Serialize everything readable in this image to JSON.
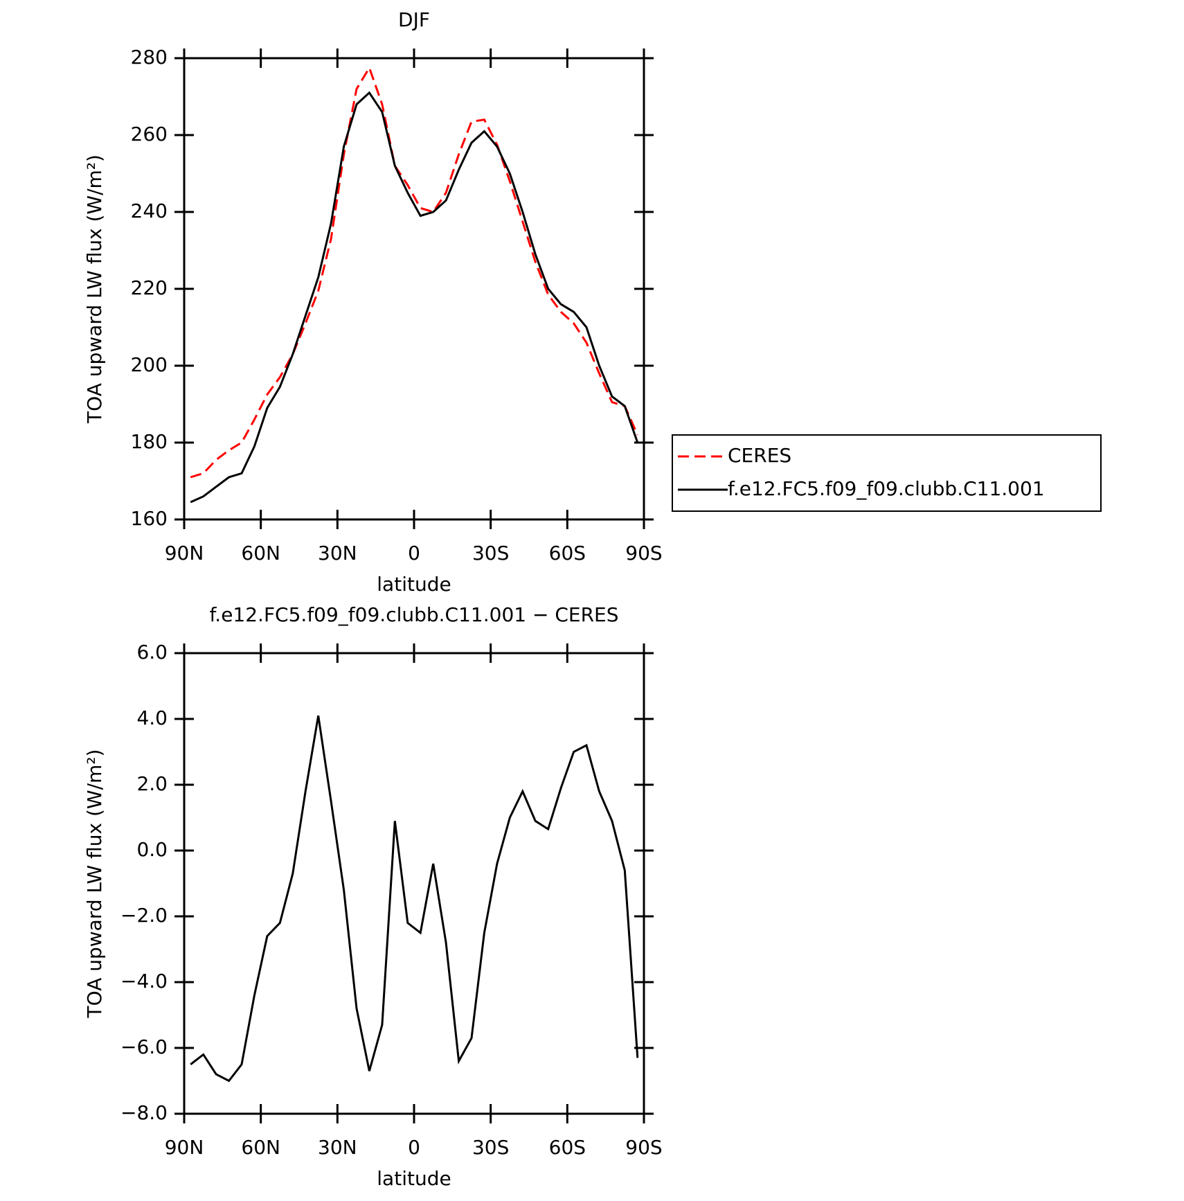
{
  "chart_data": [
    {
      "type": "line",
      "title": "DJF",
      "xlabel": "latitude",
      "ylabel": "TOA upward LW flux (W/m²)",
      "x": [
        87.5,
        82.5,
        77.5,
        72.5,
        67.5,
        62.5,
        57.5,
        52.5,
        47.5,
        42.5,
        37.5,
        32.5,
        27.5,
        22.5,
        17.5,
        12.5,
        7.5,
        2.5,
        -2.5,
        -7.5,
        -12.5,
        -17.5,
        -22.5,
        -27.5,
        -32.5,
        -37.5,
        -42.5,
        -47.5,
        -52.5,
        -57.5,
        -62.5,
        -67.5,
        -72.5,
        -77.5,
        -82.5,
        -87.5
      ],
      "series": [
        {
          "name": "CERES",
          "color": "#ff0000",
          "dashed": true,
          "values": [
            171,
            172,
            175.5,
            178,
            180,
            186,
            192.5,
            197,
            203,
            211,
            219.5,
            233,
            255,
            272,
            277.5,
            268,
            252,
            247,
            241,
            240,
            245,
            255,
            263.5,
            264,
            257.5,
            248,
            237.5,
            227,
            218.5,
            214,
            211,
            206,
            198,
            190.5,
            189.5,
            182
          ]
        },
        {
          "name": "f.e12.FC5.f09_f09.clubb.C11.001",
          "color": "#000000",
          "dashed": false,
          "values": [
            164.5,
            166,
            168.5,
            171,
            172,
            179,
            189,
            194.5,
            203,
            213,
            223,
            237,
            257,
            268,
            271,
            266,
            252,
            245,
            239,
            240,
            243,
            251,
            258,
            261,
            257,
            250,
            240,
            229,
            220,
            216,
            214,
            210,
            200,
            192,
            189.5,
            180
          ]
        }
      ],
      "xlim": [
        90,
        -90
      ],
      "xticks": [
        {
          "value": 90,
          "label": "90N"
        },
        {
          "value": 60,
          "label": "60N"
        },
        {
          "value": 30,
          "label": "30N"
        },
        0,
        {
          "value": -30,
          "label": "30S"
        },
        {
          "value": -60,
          "label": "60S"
        },
        {
          "value": -90,
          "label": "90S"
        }
      ],
      "ylim": [
        160,
        280
      ],
      "yticks": [
        160,
        180,
        200,
        220,
        240,
        260,
        280
      ],
      "legend": "right"
    },
    {
      "type": "line",
      "title": "f.e12.FC5.f09_f09.clubb.C11.001 − CERES",
      "xlabel": "latitude",
      "ylabel": "TOA upward LW flux (W/m²)",
      "x": [
        87.5,
        82.5,
        77.5,
        72.5,
        67.5,
        62.5,
        57.5,
        52.5,
        47.5,
        42.5,
        37.5,
        32.5,
        27.5,
        22.5,
        17.5,
        12.5,
        7.5,
        2.5,
        -2.5,
        -7.5,
        -12.5,
        -17.5,
        -22.5,
        -27.5,
        -32.5,
        -37.5,
        -42.5,
        -47.5,
        -52.5,
        -57.5,
        -62.5,
        -67.5,
        -72.5,
        -77.5,
        -82.5,
        -87.5
      ],
      "series": [
        {
          "color": "#000000",
          "dashed": false,
          "values": [
            -6.5,
            -6.2,
            -6.8,
            -7.0,
            -6.5,
            -4.4,
            -2.6,
            -2.2,
            -0.7,
            1.8,
            4.1,
            1.5,
            -1.2,
            -4.8,
            -6.7,
            -5.3,
            0.9,
            -2.2,
            -2.5,
            -0.4,
            -2.8,
            -6.4,
            -5.7,
            -2.5,
            -0.4,
            1.0,
            1.8,
            0.9,
            0.65,
            1.9,
            3.0,
            3.2,
            1.8,
            0.9,
            -0.6,
            -6.3
          ]
        }
      ],
      "xlim": [
        90,
        -90
      ],
      "xticks": [
        {
          "value": 90,
          "label": "90N"
        },
        {
          "value": 60,
          "label": "60N"
        },
        {
          "value": 30,
          "label": "30N"
        },
        0,
        {
          "value": -30,
          "label": "30S"
        },
        {
          "value": -60,
          "label": "60S"
        },
        {
          "value": -90,
          "label": "90S"
        }
      ],
      "ylim": [
        -8,
        6
      ],
      "yticks": [
        {
          "value": -8,
          "label": "−8.0"
        },
        {
          "value": -6,
          "label": "−6.0"
        },
        {
          "value": -4,
          "label": "−4.0"
        },
        {
          "value": -2,
          "label": "−2.0"
        },
        {
          "value": 0,
          "label": "0.0"
        },
        {
          "value": 2,
          "label": "2.0"
        },
        {
          "value": 4,
          "label": "4.0"
        },
        {
          "value": 6,
          "label": "6.0"
        }
      ]
    }
  ]
}
